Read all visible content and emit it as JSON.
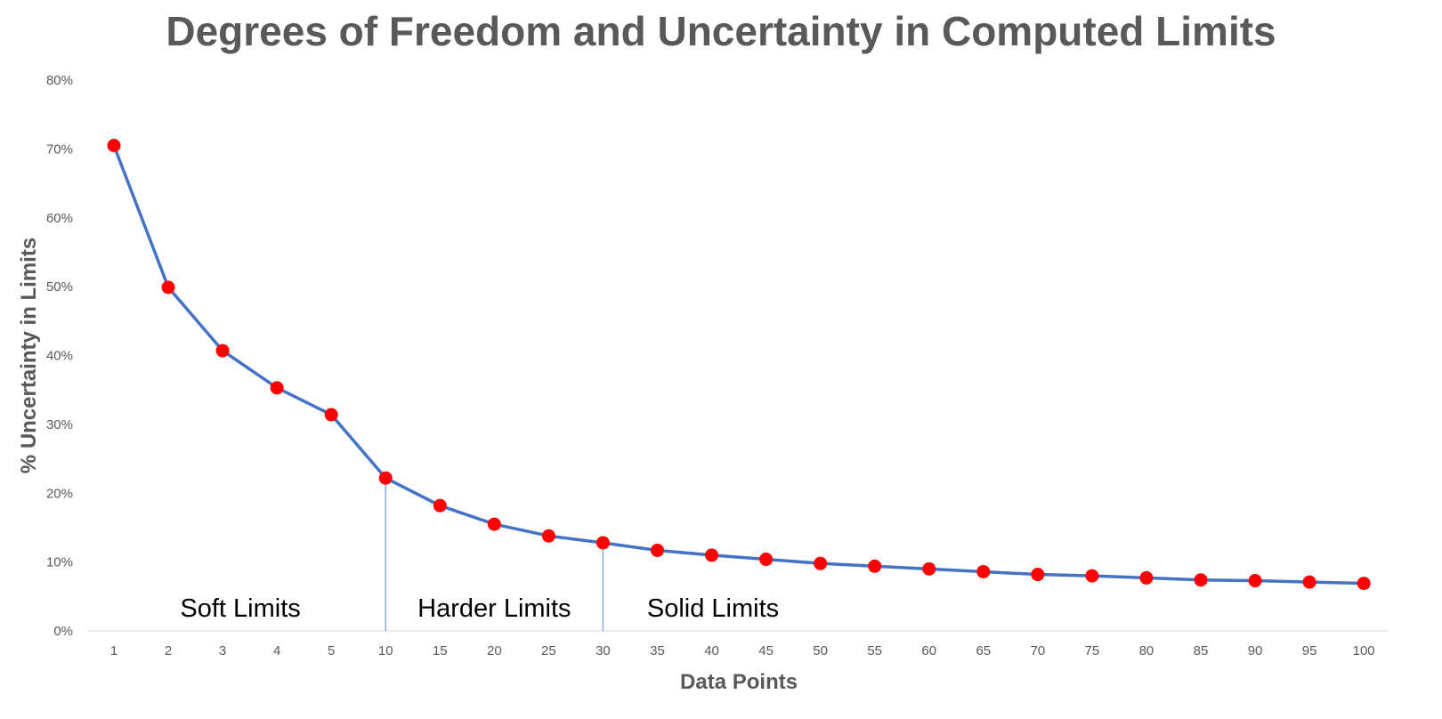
{
  "chart_data": {
    "type": "line",
    "title": "Degrees of Freedom and Uncertainty in Computed Limits",
    "xlabel": "Data Points",
    "ylabel": "% Uncertainty in Limits",
    "categories": [
      "1",
      "2",
      "3",
      "4",
      "5",
      "10",
      "15",
      "20",
      "25",
      "30",
      "35",
      "40",
      "45",
      "50",
      "55",
      "60",
      "65",
      "70",
      "75",
      "80",
      "85",
      "90",
      "95",
      "100"
    ],
    "series": [
      {
        "values": [
          70.5,
          49.9,
          40.7,
          35.3,
          31.4,
          22.2,
          18.2,
          15.5,
          13.8,
          12.8,
          11.7,
          11.0,
          10.4,
          9.8,
          9.4,
          9.0,
          8.6,
          8.2,
          8.0,
          7.7,
          7.4,
          7.3,
          7.1,
          6.9
        ]
      }
    ],
    "ylim": [
      0,
      80
    ],
    "yticks": [
      "0%",
      "10%",
      "20%",
      "30%",
      "40%",
      "50%",
      "60%",
      "70%",
      "80%"
    ],
    "grid": false,
    "line_color": "#4472C4",
    "marker_color": "#FF0000",
    "annotations": {
      "divider_categories": [
        "10",
        "30"
      ],
      "regions": [
        {
          "text": "Soft Limits",
          "near": "1-5"
        },
        {
          "text": "Harder Limits",
          "near": "10-30"
        },
        {
          "text": "Solid Limits",
          "near": "30-100"
        }
      ]
    }
  }
}
